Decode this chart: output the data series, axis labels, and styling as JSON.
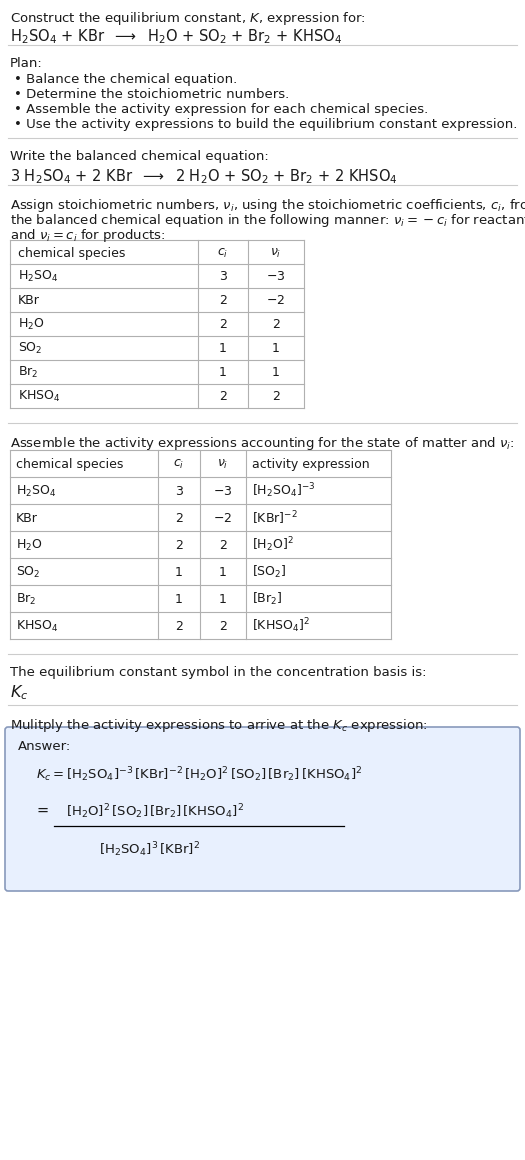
{
  "bg_color": "#ffffff",
  "text_color": "#1a1a1a",
  "table_line_color": "#b0b0b0",
  "answer_box_facecolor": "#e8f0fe",
  "answer_box_edgecolor": "#8899bb",
  "separator_color": "#cccccc",
  "fs_body": 9.5,
  "fs_table": 9.0,
  "fs_eq": 10.5,
  "title_line1": "Construct the equilibrium constant, $K$, expression for:",
  "plan_header": "Plan:",
  "plan_items": [
    "Balance the chemical equation.",
    "Determine the stoichiometric numbers.",
    "Assemble the activity expression for each chemical species.",
    "Use the activity expressions to build the equilibrium constant expression."
  ],
  "balanced_header": "Write the balanced chemical equation:",
  "stoich_para1": "Assign stoichiometric numbers, $\\nu_i$, using the stoichiometric coefficients, $c_i$, from",
  "stoich_para2": "the balanced chemical equation in the following manner: $\\nu_i = -c_i$ for reactants",
  "stoich_para3": "and $\\nu_i = c_i$ for products:",
  "t1_headers": [
    "chemical species",
    "$c_i$",
    "$\\nu_i$"
  ],
  "t1_species": [
    "$\\mathrm{H_2SO_4}$",
    "KBr",
    "$\\mathrm{H_2O}$",
    "$\\mathrm{SO_2}$",
    "$\\mathrm{Br_2}$",
    "$\\mathrm{KHSO_4}$"
  ],
  "t1_ci": [
    "3",
    "2",
    "2",
    "1",
    "1",
    "2"
  ],
  "t1_vi": [
    "$-3$",
    "$-2$",
    "2",
    "1",
    "1",
    "2"
  ],
  "activity_header": "Assemble the activity expressions accounting for the state of matter and $\\nu_i$:",
  "t2_headers": [
    "chemical species",
    "$c_i$",
    "$\\nu_i$",
    "activity expression"
  ],
  "t2_species": [
    "$\\mathrm{H_2SO_4}$",
    "KBr",
    "$\\mathrm{H_2O}$",
    "$\\mathrm{SO_2}$",
    "$\\mathrm{Br_2}$",
    "$\\mathrm{KHSO_4}$"
  ],
  "t2_ci": [
    "3",
    "2",
    "2",
    "1",
    "1",
    "2"
  ],
  "t2_vi": [
    "$-3$",
    "$-2$",
    "2",
    "1",
    "1",
    "2"
  ],
  "t2_act": [
    "$[\\mathrm{H_2SO_4}]^{-3}$",
    "$[\\mathrm{KBr}]^{-2}$",
    "$[\\mathrm{H_2O}]^{2}$",
    "$[\\mathrm{SO_2}]$",
    "$[\\mathrm{Br_2}]$",
    "$[\\mathrm{KHSO_4}]^{2}$"
  ],
  "kc_header": "The equilibrium constant symbol in the concentration basis is:",
  "multiply_header": "Mulitply the activity expressions to arrive at the $K_c$ expression:",
  "answer_label": "Answer:"
}
